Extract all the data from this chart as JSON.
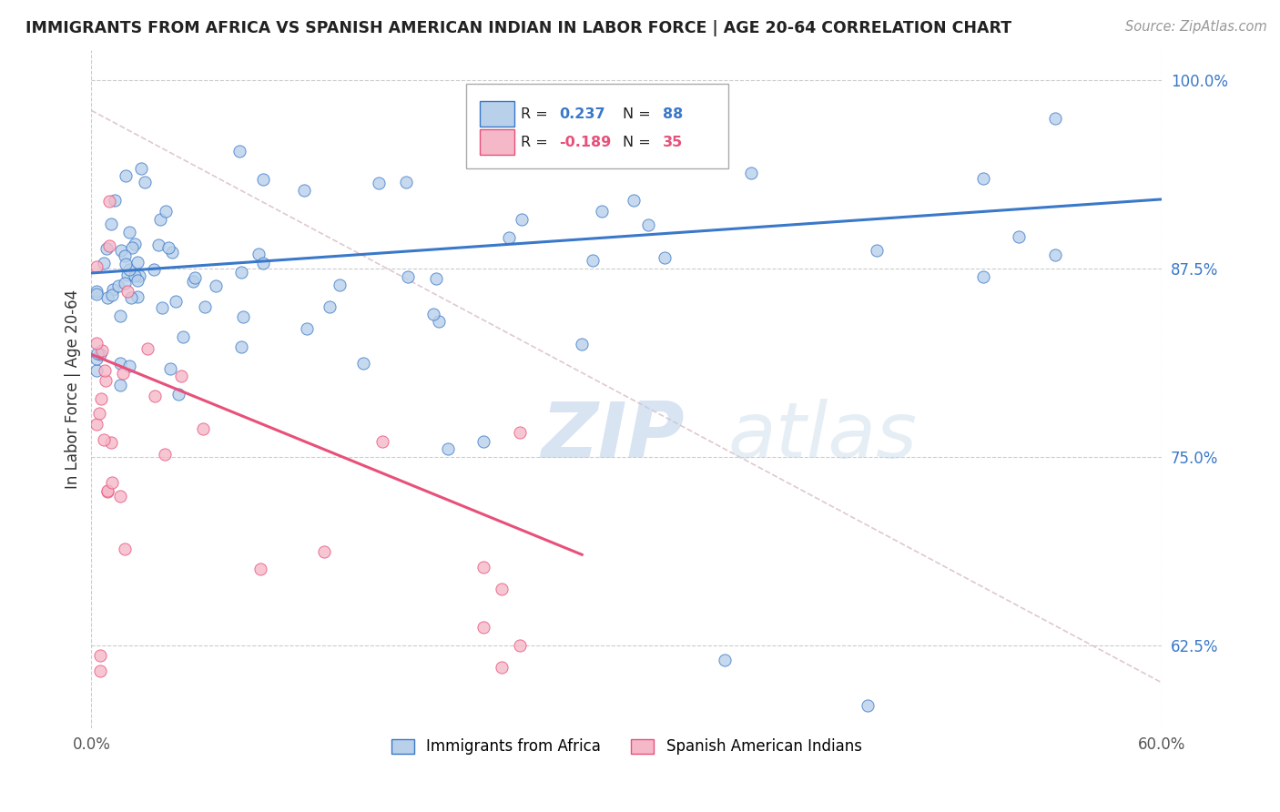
{
  "title": "IMMIGRANTS FROM AFRICA VS SPANISH AMERICAN INDIAN IN LABOR FORCE | AGE 20-64 CORRELATION CHART",
  "source": "Source: ZipAtlas.com",
  "ylabel": "In Labor Force | Age 20-64",
  "legend_label1": "Immigrants from Africa",
  "legend_label2": "Spanish American Indians",
  "r1": 0.237,
  "n1": 88,
  "r2": -0.189,
  "n2": 35,
  "xlim": [
    0.0,
    0.6
  ],
  "ylim": [
    0.57,
    1.02
  ],
  "yticks": [
    0.625,
    0.75,
    0.875,
    1.0
  ],
  "ytick_labels": [
    "62.5%",
    "75.0%",
    "87.5%",
    "100.0%"
  ],
  "xtick_labels": [
    "0.0%",
    "60.0%"
  ],
  "color_blue": "#b8d0ea",
  "color_pink": "#f5b8c8",
  "line_blue": "#3a78c9",
  "line_pink": "#e8507a",
  "diag_color": "#e0c8d0",
  "watermark_color": "#dce8f0",
  "blue_trend": [
    0.0,
    0.6,
    0.872,
    0.921
  ],
  "pink_trend": [
    0.0,
    0.275,
    0.818,
    0.685
  ],
  "diag_line": [
    0.0,
    0.6,
    0.98,
    0.6
  ]
}
